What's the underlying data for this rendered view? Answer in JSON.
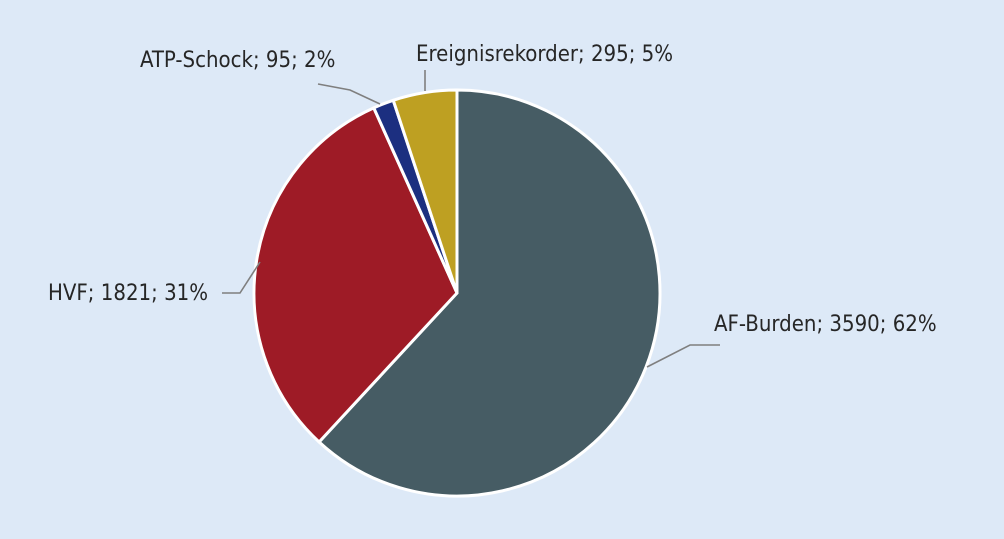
{
  "chart_data": {
    "type": "pie",
    "background": "#dde9f7",
    "slices": [
      {
        "label": "AF-Burden",
        "value": 3590,
        "percent": "62%",
        "color": "#465c64"
      },
      {
        "label": "HVF",
        "value": 1821,
        "percent": "31%",
        "color": "#9e1b26"
      },
      {
        "label": "ATP-Schock",
        "value": 95,
        "percent": "2%",
        "color": "#1c2f80"
      },
      {
        "label": "Ereignisrekorder",
        "value": 295,
        "percent": "5%",
        "color": "#bea022"
      }
    ],
    "labels": {
      "af_burden": "AF-Burden; 3590; 62%",
      "hvf": "HVF; 1821; 31%",
      "atp_schock": "ATP-Schock; 95; 2%",
      "ereignisrekorder": "Ereignisrekorder; 295; 5%"
    }
  }
}
